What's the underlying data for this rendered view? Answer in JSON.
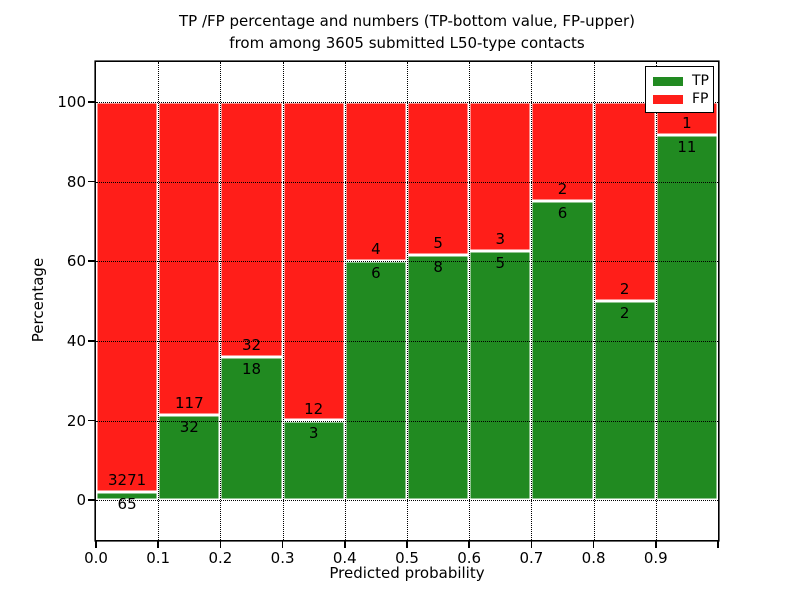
{
  "chart_data": {
    "type": "bar",
    "variant": "stacked-percentage",
    "title_line1": "TP /FP percentage and numbers (TP-bottom value, FP-upper)",
    "title_line2": "from among 3605 submitted L50-type contacts",
    "xlabel": "Predicted probability",
    "ylabel": "Percentage",
    "x_tick_labels": [
      "0.0",
      "0.1",
      "0.2",
      "0.3",
      "0.4",
      "0.5",
      "0.6",
      "0.7",
      "0.8",
      "0.9"
    ],
    "y_tick_values": [
      0,
      20,
      40,
      60,
      80,
      100
    ],
    "xlim": [
      0.0,
      1.0
    ],
    "ylim": [
      -10,
      110
    ],
    "bin_starts": [
      0.0,
      0.1,
      0.2,
      0.3,
      0.4,
      0.5,
      0.6,
      0.7,
      0.8,
      0.9
    ],
    "bin_width": 0.1,
    "grid": true,
    "series": [
      {
        "name": "TP",
        "role": "bottom-segment",
        "color": "#218a21",
        "counts": [
          65,
          32,
          18,
          3,
          6,
          8,
          5,
          6,
          2,
          11
        ]
      },
      {
        "name": "FP",
        "role": "upper-segment",
        "color": "#ff1e19",
        "counts": [
          3271,
          117,
          32,
          12,
          4,
          5,
          3,
          2,
          2,
          1
        ]
      }
    ],
    "tp_percent_heights": [
      1.9,
      21.5,
      36.0,
      20.0,
      60.0,
      61.5,
      62.5,
      75.0,
      50.0,
      91.7
    ],
    "legend": {
      "position": "upper right",
      "entries": [
        {
          "label": "TP",
          "color": "#218a21"
        },
        {
          "label": "FP",
          "color": "#ff1e19"
        }
      ]
    }
  },
  "colors": {
    "tp_green": "#218a21",
    "fp_red": "#ff1e19",
    "background": "#ffffff",
    "axis_and_text": "#000000"
  }
}
